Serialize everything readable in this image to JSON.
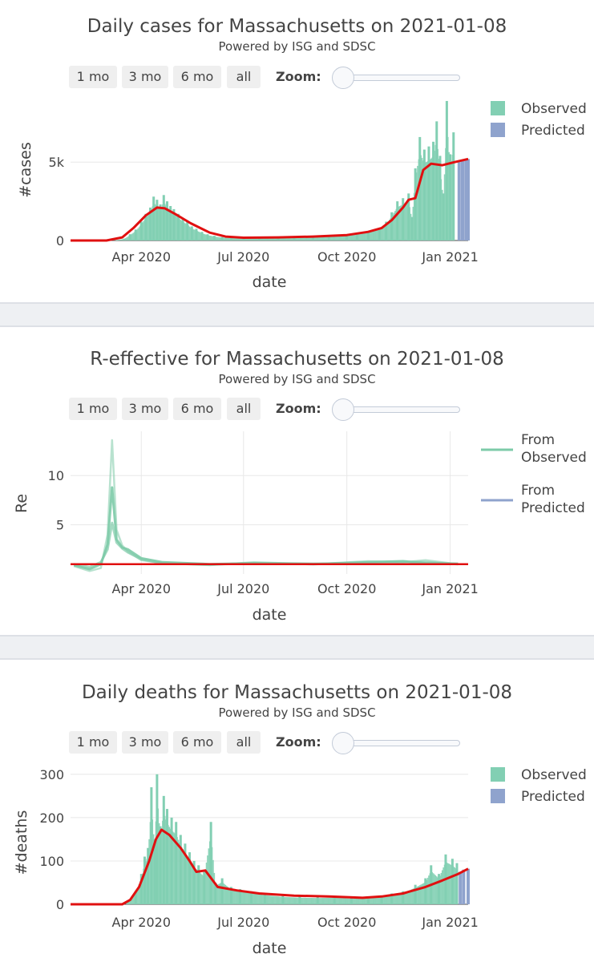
{
  "buttons": [
    "1 mo",
    "3 mo",
    "6 mo",
    "all"
  ],
  "zoom_label": "Zoom:",
  "colors": {
    "observed": "#82cfb3",
    "predicted": "#8fa3cd",
    "line": "#e01010",
    "re_line": "#7dcba8",
    "grid": "#e8e8e8"
  },
  "chart_data": [
    {
      "type": "bar",
      "title": "Daily cases for Massachusetts on 2021-01-08",
      "subtitle": "Powered by ISG and SDSC",
      "xlabel": "date",
      "ylabel": "#cases",
      "x_ticks": [
        "Apr 2020",
        "Jul 2020",
        "Oct 2020",
        "Jan 2021"
      ],
      "x_range": [
        "2020-01-29",
        "2021-01-17"
      ],
      "y_ticks": [
        {
          "v": 0,
          "label": "0"
        },
        {
          "v": 5000,
          "label": "5k"
        }
      ],
      "ylim": [
        0,
        9000
      ],
      "legend": [
        "Observed",
        "Predicted"
      ],
      "bars_observed": [
        [
          "2020-02-29",
          0
        ],
        [
          "2020-03-10",
          30
        ],
        [
          "2020-03-17",
          120
        ],
        [
          "2020-03-22",
          400
        ],
        [
          "2020-03-27",
          700
        ],
        [
          "2020-04-01",
          1200
        ],
        [
          "2020-04-05",
          1700
        ],
        [
          "2020-04-09",
          2100
        ],
        [
          "2020-04-12",
          2800
        ],
        [
          "2020-04-15",
          2600
        ],
        [
          "2020-04-18",
          2300
        ],
        [
          "2020-04-21",
          2900
        ],
        [
          "2020-04-24",
          2500
        ],
        [
          "2020-04-27",
          2200
        ],
        [
          "2020-04-30",
          2000
        ],
        [
          "2020-05-04",
          1700
        ],
        [
          "2020-05-08",
          1400
        ],
        [
          "2020-05-12",
          1200
        ],
        [
          "2020-05-16",
          900
        ],
        [
          "2020-05-20",
          750
        ],
        [
          "2020-05-25",
          550
        ],
        [
          "2020-05-30",
          400
        ],
        [
          "2020-06-05",
          300
        ],
        [
          "2020-06-12",
          220
        ],
        [
          "2020-06-20",
          180
        ],
        [
          "2020-07-01",
          180
        ],
        [
          "2020-07-15",
          200
        ],
        [
          "2020-08-01",
          220
        ],
        [
          "2020-08-15",
          260
        ],
        [
          "2020-09-01",
          300
        ],
        [
          "2020-09-15",
          320
        ],
        [
          "2020-10-01",
          400
        ],
        [
          "2020-10-10",
          500
        ],
        [
          "2020-10-20",
          600
        ],
        [
          "2020-10-30",
          800
        ],
        [
          "2020-11-05",
          1200
        ],
        [
          "2020-11-10",
          1800
        ],
        [
          "2020-11-15",
          2500
        ],
        [
          "2020-11-20",
          2700
        ],
        [
          "2020-11-25",
          3000
        ],
        [
          "2020-11-28",
          1500
        ],
        [
          "2020-12-01",
          4600
        ],
        [
          "2020-12-05",
          6600
        ],
        [
          "2020-12-09",
          5800
        ],
        [
          "2020-12-13",
          6000
        ],
        [
          "2020-12-17",
          6300
        ],
        [
          "2020-12-20",
          7600
        ],
        [
          "2020-12-23",
          5400
        ],
        [
          "2020-12-26",
          3000
        ],
        [
          "2020-12-29",
          8900
        ],
        [
          "2021-01-01",
          5500
        ],
        [
          "2021-01-04",
          6900
        ]
      ],
      "bars_predicted": [
        [
          "2021-01-09",
          5000
        ],
        [
          "2021-01-12",
          5100
        ],
        [
          "2021-01-15",
          5200
        ],
        [
          "2021-01-17",
          5200
        ]
      ],
      "line": [
        [
          "2020-01-29",
          0
        ],
        [
          "2020-03-01",
          0
        ],
        [
          "2020-03-15",
          200
        ],
        [
          "2020-03-25",
          800
        ],
        [
          "2020-04-05",
          1600
        ],
        [
          "2020-04-15",
          2100
        ],
        [
          "2020-04-22",
          2050
        ],
        [
          "2020-05-01",
          1700
        ],
        [
          "2020-05-15",
          1100
        ],
        [
          "2020-06-01",
          500
        ],
        [
          "2020-06-15",
          250
        ],
        [
          "2020-07-01",
          180
        ],
        [
          "2020-08-01",
          200
        ],
        [
          "2020-09-01",
          250
        ],
        [
          "2020-10-01",
          350
        ],
        [
          "2020-10-20",
          550
        ],
        [
          "2020-11-01",
          800
        ],
        [
          "2020-11-10",
          1300
        ],
        [
          "2020-11-20",
          2100
        ],
        [
          "2020-11-25",
          2600
        ],
        [
          "2020-12-01",
          2700
        ],
        [
          "2020-12-08",
          4500
        ],
        [
          "2020-12-15",
          4900
        ],
        [
          "2020-12-25",
          4800
        ],
        [
          "2021-01-05",
          5000
        ],
        [
          "2021-01-17",
          5200
        ]
      ]
    },
    {
      "type": "line",
      "title": "R-effective for Massachusetts on 2021-01-08",
      "subtitle": "Powered by ISG and SDSC",
      "xlabel": "date",
      "ylabel": "Re",
      "x_ticks": [
        "Apr 2020",
        "Jul 2020",
        "Oct 2020",
        "Jan 2021"
      ],
      "x_range": [
        "2020-01-29",
        "2021-01-17"
      ],
      "y_ticks": [
        {
          "v": 5,
          "label": "5"
        },
        {
          "v": 10,
          "label": "10"
        }
      ],
      "ylim": [
        0,
        14.5
      ],
      "legend": [
        "From Observed",
        "From Predicted"
      ],
      "series": [
        {
          "values": [
            [
              "2020-02-01",
              0.9
            ],
            [
              "2020-02-15",
              0.5
            ],
            [
              "2020-02-25",
              1.0
            ],
            [
              "2020-03-02",
              3
            ],
            [
              "2020-03-06",
              8.8
            ],
            [
              "2020-03-10",
              3.5
            ],
            [
              "2020-03-15",
              2.7
            ],
            [
              "2020-03-20",
              2.5
            ],
            [
              "2020-04-01",
              1.6
            ],
            [
              "2020-04-20",
              1.2
            ],
            [
              "2020-06-01",
              1.0
            ],
            [
              "2020-07-10",
              1.1
            ],
            [
              "2020-09-01",
              1.0
            ],
            [
              "2020-10-20",
              1.2
            ],
            [
              "2020-11-20",
              1.3
            ],
            [
              "2020-12-10",
              1.1
            ],
            [
              "2021-01-08",
              1.05
            ]
          ]
        },
        {
          "values": [
            [
              "2020-02-01",
              0.8
            ],
            [
              "2020-02-15",
              0.3
            ],
            [
              "2020-02-25",
              0.6
            ],
            [
              "2020-03-02",
              4
            ],
            [
              "2020-03-06",
              13.6
            ],
            [
              "2020-03-10",
              4.5
            ],
            [
              "2020-03-15",
              2.9
            ],
            [
              "2020-03-20",
              2.3
            ],
            [
              "2020-04-01",
              1.4
            ],
            [
              "2020-04-20",
              1.1
            ],
            [
              "2020-06-01",
              0.9
            ],
            [
              "2020-07-10",
              1.2
            ],
            [
              "2020-09-01",
              1.0
            ],
            [
              "2020-10-20",
              1.3
            ],
            [
              "2020-11-20",
              1.2
            ],
            [
              "2020-12-10",
              1.4
            ],
            [
              "2021-01-08",
              1.0
            ]
          ]
        },
        {
          "values": [
            [
              "2020-02-01",
              1.0
            ],
            [
              "2020-02-15",
              0.7
            ],
            [
              "2020-02-25",
              1.2
            ],
            [
              "2020-03-02",
              2.5
            ],
            [
              "2020-03-06",
              5.2
            ],
            [
              "2020-03-10",
              3.2
            ],
            [
              "2020-03-15",
              2.6
            ],
            [
              "2020-03-20",
              2.2
            ],
            [
              "2020-04-01",
              1.5
            ],
            [
              "2020-04-20",
              1.1
            ],
            [
              "2020-06-01",
              0.95
            ],
            [
              "2020-07-10",
              1.1
            ],
            [
              "2020-09-01",
              1.05
            ],
            [
              "2020-10-20",
              1.1
            ],
            [
              "2020-11-20",
              1.25
            ],
            [
              "2020-12-10",
              1.2
            ],
            [
              "2021-01-08",
              1.0
            ]
          ]
        }
      ],
      "reference_line": 1.0
    },
    {
      "type": "bar",
      "title": "Daily deaths for Massachusetts on 2021-01-08",
      "subtitle": "Powered by ISG and SDSC",
      "xlabel": "date",
      "ylabel": "#deaths",
      "x_ticks": [
        "Apr 2020",
        "Jul 2020",
        "Oct 2020",
        "Jan 2021"
      ],
      "x_range": [
        "2020-01-29",
        "2021-01-17"
      ],
      "y_ticks": [
        {
          "v": 0,
          "label": "0"
        },
        {
          "v": 100,
          "label": "100"
        },
        {
          "v": 200,
          "label": "200"
        },
        {
          "v": 300,
          "label": "300"
        }
      ],
      "ylim": [
        0,
        320
      ],
      "legend": [
        "Observed",
        "Predicted"
      ],
      "bars_observed": [
        [
          "2020-03-20",
          5
        ],
        [
          "2020-03-27",
          30
        ],
        [
          "2020-04-01",
          70
        ],
        [
          "2020-04-04",
          110
        ],
        [
          "2020-04-07",
          130
        ],
        [
          "2020-04-10",
          270
        ],
        [
          "2020-04-13",
          150
        ],
        [
          "2020-04-15",
          300
        ],
        [
          "2020-04-18",
          180
        ],
        [
          "2020-04-21",
          250
        ],
        [
          "2020-04-24",
          220
        ],
        [
          "2020-04-28",
          200
        ],
        [
          "2020-05-02",
          190
        ],
        [
          "2020-05-06",
          160
        ],
        [
          "2020-05-10",
          140
        ],
        [
          "2020-05-14",
          120
        ],
        [
          "2020-05-18",
          100
        ],
        [
          "2020-05-22",
          90
        ],
        [
          "2020-05-27",
          75
        ],
        [
          "2020-06-02",
          190
        ],
        [
          "2020-06-06",
          50
        ],
        [
          "2020-06-12",
          60
        ],
        [
          "2020-06-20",
          40
        ],
        [
          "2020-06-28",
          35
        ],
        [
          "2020-07-08",
          30
        ],
        [
          "2020-07-20",
          25
        ],
        [
          "2020-08-05",
          20
        ],
        [
          "2020-08-20",
          18
        ],
        [
          "2020-09-05",
          17
        ],
        [
          "2020-09-20",
          18
        ],
        [
          "2020-10-05",
          15
        ],
        [
          "2020-10-20",
          18
        ],
        [
          "2020-11-01",
          20
        ],
        [
          "2020-11-10",
          25
        ],
        [
          "2020-11-20",
          30
        ],
        [
          "2020-12-01",
          45
        ],
        [
          "2020-12-10",
          60
        ],
        [
          "2020-12-15",
          90
        ],
        [
          "2020-12-22",
          70
        ],
        [
          "2020-12-28",
          115
        ],
        [
          "2021-01-03",
          105
        ],
        [
          "2021-01-07",
          95
        ]
      ],
      "bars_predicted": [
        [
          "2021-01-10",
          75
        ],
        [
          "2021-01-13",
          80
        ],
        [
          "2021-01-17",
          82
        ]
      ],
      "line": [
        [
          "2020-01-29",
          0
        ],
        [
          "2020-03-15",
          0
        ],
        [
          "2020-03-22",
          10
        ],
        [
          "2020-03-30",
          40
        ],
        [
          "2020-04-08",
          100
        ],
        [
          "2020-04-14",
          150
        ],
        [
          "2020-04-19",
          172
        ],
        [
          "2020-04-26",
          160
        ],
        [
          "2020-05-06",
          130
        ],
        [
          "2020-05-14",
          100
        ],
        [
          "2020-05-20",
          75
        ],
        [
          "2020-05-28",
          78
        ],
        [
          "2020-06-08",
          40
        ],
        [
          "2020-06-25",
          32
        ],
        [
          "2020-07-15",
          25
        ],
        [
          "2020-08-15",
          20
        ],
        [
          "2020-09-15",
          18
        ],
        [
          "2020-10-15",
          15
        ],
        [
          "2020-11-01",
          18
        ],
        [
          "2020-11-20",
          25
        ],
        [
          "2020-12-10",
          40
        ],
        [
          "2020-12-25",
          55
        ],
        [
          "2021-01-08",
          70
        ],
        [
          "2021-01-17",
          82
        ]
      ]
    }
  ]
}
